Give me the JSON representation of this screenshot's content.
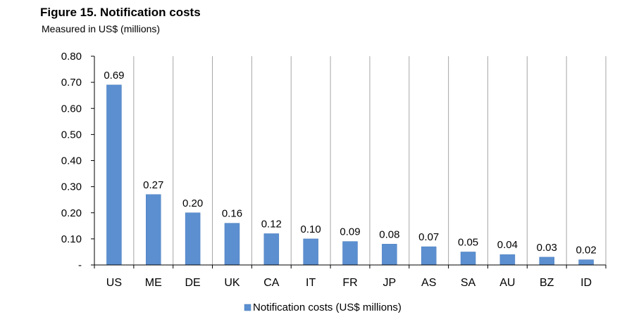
{
  "chart_data": {
    "type": "bar",
    "title": "Figure 15. Notification costs",
    "subtitle": "Measured in US$ (millions)",
    "xlabel": "",
    "ylabel": "",
    "categories": [
      "US",
      "ME",
      "DE",
      "UK",
      "CA",
      "IT",
      "FR",
      "JP",
      "AS",
      "SA",
      "AU",
      "BZ",
      "ID"
    ],
    "series": [
      {
        "name": "Notification costs (US$ millions)",
        "values": [
          0.69,
          0.27,
          0.2,
          0.16,
          0.12,
          0.1,
          0.09,
          0.08,
          0.07,
          0.05,
          0.04,
          0.03,
          0.02
        ],
        "data_labels": [
          "0.69",
          "0.27",
          "0.20",
          "0.16",
          "0.12",
          "0.10",
          "0.09",
          "0.08",
          "0.07",
          "0.05",
          "0.04",
          "0.03",
          "0.02"
        ]
      }
    ],
    "ylim": [
      0,
      0.8
    ],
    "yticks": [
      0,
      0.1,
      0.2,
      0.3,
      0.4,
      0.5,
      0.6,
      0.7,
      0.8
    ],
    "ytick_labels": [
      "-",
      "0.10",
      "0.20",
      "0.30",
      "0.40",
      "0.50",
      "0.60",
      "0.70",
      "0.80"
    ],
    "grid": "vertical-category-separators",
    "legend": "bottom-center",
    "colors": {
      "bar": "#5b8fd0",
      "bar_edge": "#4a7dbd",
      "grid": "#a6a6a6",
      "axis": "#000000"
    }
  }
}
